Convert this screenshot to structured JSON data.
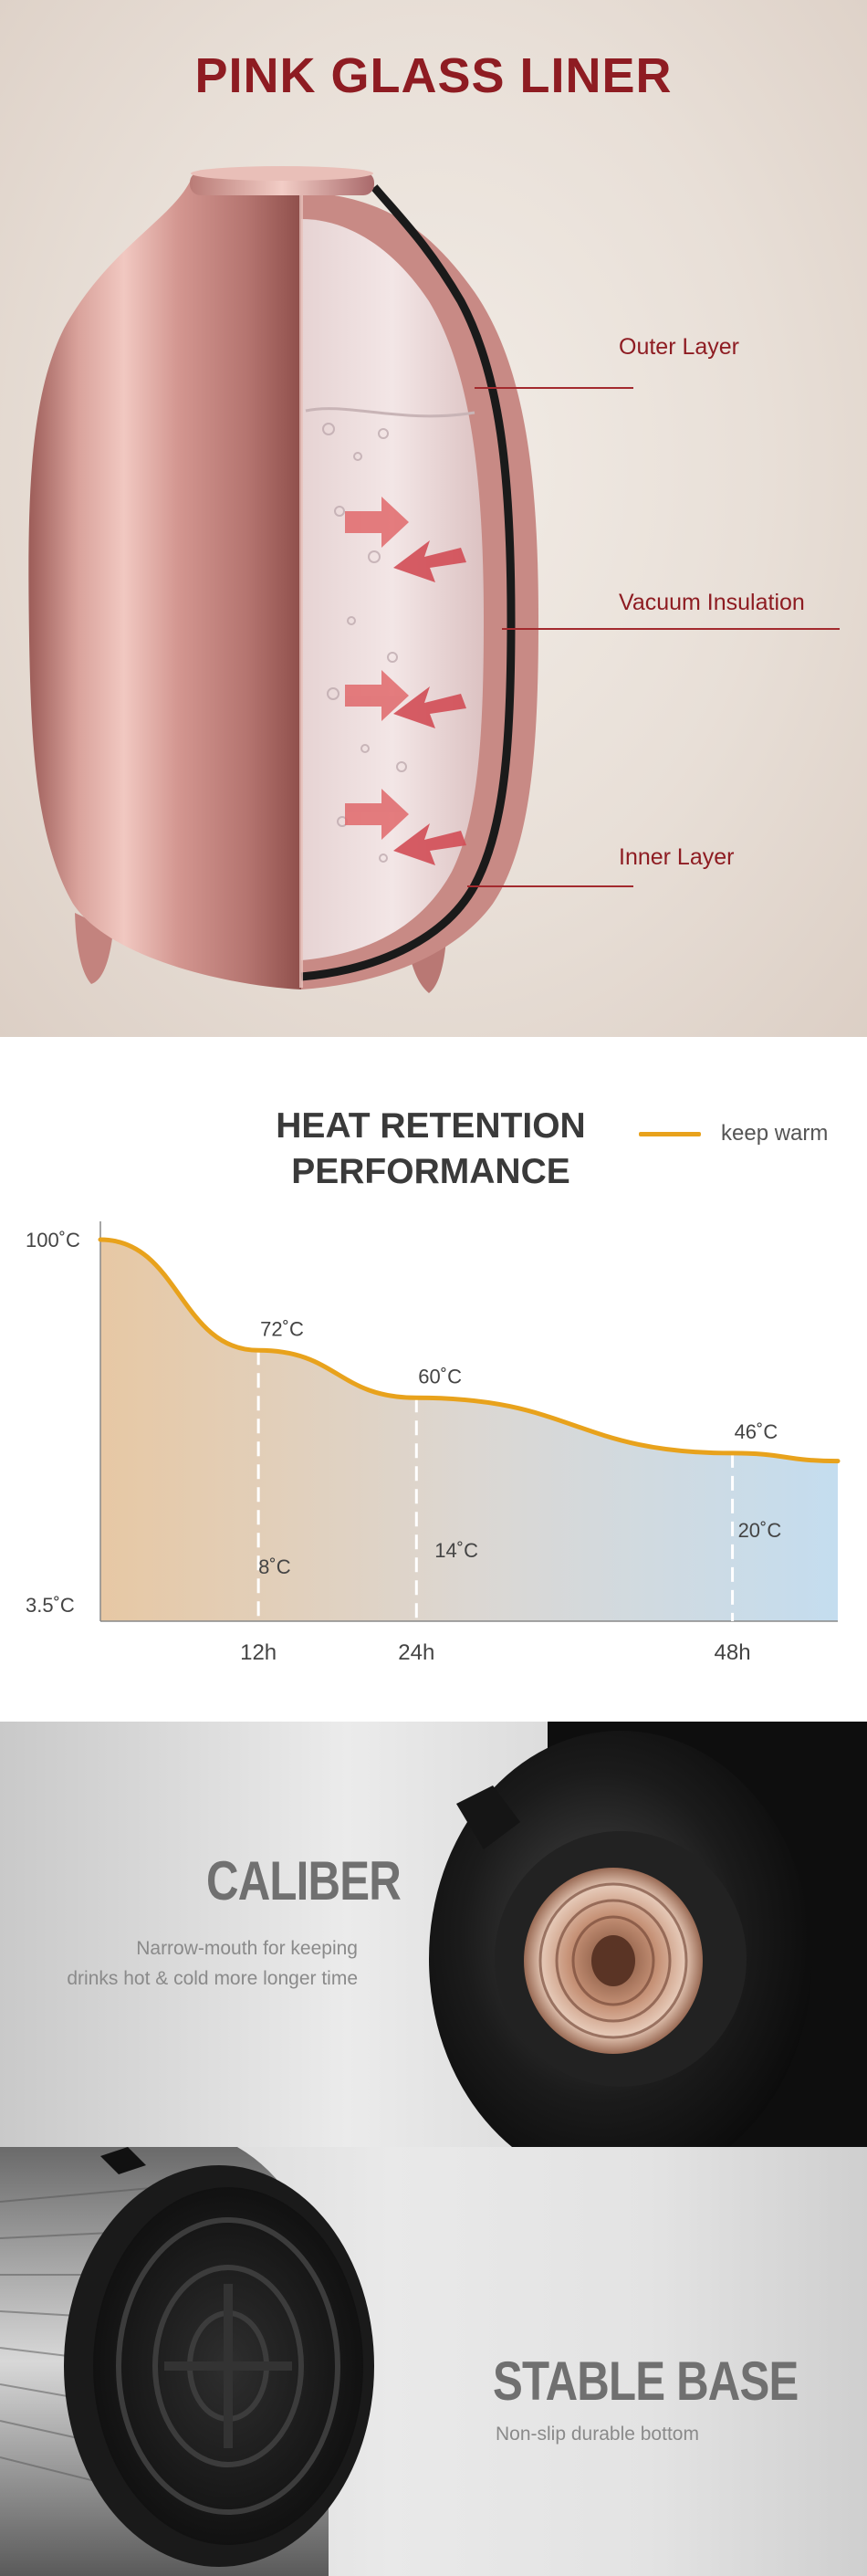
{
  "liner": {
    "title": "PINK GLASS LINER",
    "labels": {
      "outer": "Outer Layer",
      "vacuum": "Vacuum Insulation",
      "inner": "Inner Layer"
    },
    "colors": {
      "accent": "#8e1c22",
      "bottle": "#c98b86"
    }
  },
  "heat": {
    "title_line1": "HEAT RETENTION",
    "title_line2": "PERFORMANCE",
    "legend_label": "keep warm",
    "line_color": "#e8a21c"
  },
  "chart_data": {
    "type": "area",
    "title": "HEAT RETENTION PERFORMANCE",
    "y_tick_labels": [
      "100˚C",
      "3.5˚C"
    ],
    "x_tick_labels": [
      "12h",
      "24h",
      "48h"
    ],
    "series": [
      {
        "name": "keep warm",
        "x": [
          0,
          12,
          24,
          48,
          56
        ],
        "y": [
          100,
          72,
          60,
          46,
          44
        ]
      }
    ],
    "annotations": {
      "upper": [
        {
          "x": 12,
          "label": "72˚C"
        },
        {
          "x": 24,
          "label": "60˚C"
        },
        {
          "x": 48,
          "label": "46˚C"
        }
      ],
      "lower": [
        {
          "x": 12,
          "label": "8˚C"
        },
        {
          "x": 24,
          "label": "14˚C"
        },
        {
          "x": 48,
          "label": "20˚C"
        }
      ]
    },
    "ylim": [
      3.5,
      100
    ],
    "xlim": [
      0,
      56
    ],
    "grid": "dashed verticals at 12h, 24h, 48h",
    "legend": "top-right"
  },
  "caliber": {
    "title": "CALIBER",
    "desc_line1": "Narrow-mouth for keeping",
    "desc_line2": "drinks hot & cold more longer time"
  },
  "base": {
    "title": "STABLE BASE",
    "desc": "Non-slip durable bottom"
  }
}
